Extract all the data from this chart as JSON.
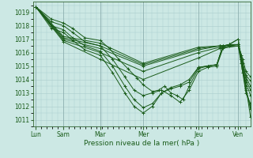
{
  "title": "",
  "xlabel": "Pression niveau de la mer( hPa )",
  "bg_color": "#cce8e4",
  "grid_color": "#aacccc",
  "line_color": "#1a5c1a",
  "tick_label_color": "#1a5c1a",
  "ylim": [
    1010.5,
    1019.8
  ],
  "yticks": [
    1011,
    1012,
    1013,
    1014,
    1015,
    1016,
    1017,
    1018,
    1019
  ],
  "xtick_labels": [
    "Lun",
    "Sam",
    "Mar",
    "Mer",
    "Jeu",
    "Ven"
  ],
  "xtick_positions": [
    0,
    0.9,
    2.1,
    3.5,
    5.3,
    6.6
  ],
  "xlim": [
    -0.1,
    7.0
  ],
  "series_paths": [
    [
      [
        0,
        1019.4
      ],
      [
        0.5,
        1018.5
      ],
      [
        0.9,
        1018.2
      ],
      [
        1.2,
        1017.8
      ],
      [
        1.6,
        1017.1
      ],
      [
        2.1,
        1016.9
      ],
      [
        2.4,
        1016.3
      ],
      [
        2.7,
        1015.5
      ],
      [
        3.0,
        1014.8
      ],
      [
        3.3,
        1014.1
      ],
      [
        3.5,
        1013.6
      ],
      [
        3.8,
        1013.1
      ],
      [
        4.0,
        1013.2
      ],
      [
        4.2,
        1013.5
      ],
      [
        4.4,
        1013.0
      ],
      [
        4.6,
        1012.8
      ],
      [
        4.8,
        1012.5
      ],
      [
        5.0,
        1013.5
      ],
      [
        5.3,
        1014.8
      ],
      [
        5.6,
        1015.0
      ],
      [
        5.9,
        1015.1
      ],
      [
        6.1,
        1016.4
      ],
      [
        6.3,
        1016.6
      ],
      [
        6.6,
        1016.6
      ],
      [
        6.7,
        1015.8
      ],
      [
        6.85,
        1013.5
      ],
      [
        7.0,
        1011.2
      ]
    ],
    [
      [
        0,
        1019.4
      ],
      [
        0.5,
        1018.3
      ],
      [
        0.9,
        1018.0
      ],
      [
        1.2,
        1017.5
      ],
      [
        1.6,
        1016.8
      ],
      [
        2.1,
        1016.5
      ],
      [
        2.5,
        1015.5
      ],
      [
        2.9,
        1014.2
      ],
      [
        3.2,
        1013.2
      ],
      [
        3.5,
        1012.8
      ],
      [
        3.8,
        1013.0
      ],
      [
        4.1,
        1013.2
      ],
      [
        4.4,
        1012.8
      ],
      [
        4.7,
        1012.3
      ],
      [
        5.0,
        1013.2
      ],
      [
        5.3,
        1014.6
      ],
      [
        5.6,
        1014.9
      ],
      [
        5.9,
        1015.0
      ],
      [
        6.1,
        1016.3
      ],
      [
        6.3,
        1016.5
      ],
      [
        6.6,
        1016.6
      ],
      [
        6.7,
        1015.5
      ],
      [
        6.85,
        1013.2
      ],
      [
        7.0,
        1011.8
      ]
    ],
    [
      [
        0,
        1019.4
      ],
      [
        0.5,
        1018.0
      ],
      [
        0.9,
        1017.7
      ],
      [
        1.2,
        1017.1
      ],
      [
        1.6,
        1016.5
      ],
      [
        2.1,
        1016.1
      ],
      [
        2.5,
        1015.0
      ],
      [
        2.9,
        1013.5
      ],
      [
        3.2,
        1012.5
      ],
      [
        3.5,
        1011.9
      ],
      [
        3.8,
        1012.2
      ],
      [
        4.1,
        1013.0
      ],
      [
        4.4,
        1013.3
      ],
      [
        4.7,
        1013.5
      ],
      [
        5.0,
        1013.8
      ],
      [
        5.3,
        1014.9
      ],
      [
        5.6,
        1015.0
      ],
      [
        5.9,
        1015.1
      ],
      [
        6.1,
        1016.5
      ],
      [
        6.3,
        1016.6
      ],
      [
        6.6,
        1017.0
      ],
      [
        6.7,
        1015.5
      ],
      [
        6.85,
        1013.3
      ],
      [
        7.0,
        1012.0
      ]
    ],
    [
      [
        0,
        1019.4
      ],
      [
        0.5,
        1017.8
      ],
      [
        0.9,
        1017.5
      ],
      [
        1.2,
        1016.9
      ],
      [
        1.6,
        1016.2
      ],
      [
        2.1,
        1015.8
      ],
      [
        2.5,
        1014.5
      ],
      [
        2.9,
        1013.0
      ],
      [
        3.2,
        1012.0
      ],
      [
        3.5,
        1011.5
      ],
      [
        3.8,
        1012.0
      ],
      [
        4.1,
        1013.0
      ],
      [
        4.4,
        1013.4
      ],
      [
        4.7,
        1013.6
      ],
      [
        5.0,
        1014.0
      ],
      [
        5.3,
        1014.9
      ],
      [
        5.6,
        1015.0
      ],
      [
        5.9,
        1015.1
      ],
      [
        6.1,
        1016.5
      ],
      [
        6.3,
        1016.6
      ],
      [
        6.6,
        1017.0
      ],
      [
        6.7,
        1015.2
      ],
      [
        6.85,
        1013.0
      ],
      [
        7.0,
        1012.2
      ]
    ],
    [
      [
        0,
        1019.4
      ],
      [
        0.9,
        1017.2
      ],
      [
        2.1,
        1016.7
      ],
      [
        3.5,
        1015.2
      ],
      [
        5.3,
        1016.4
      ],
      [
        6.0,
        1016.5
      ],
      [
        6.6,
        1016.6
      ],
      [
        6.75,
        1015.5
      ],
      [
        6.85,
        1014.6
      ],
      [
        7.0,
        1014.2
      ]
    ],
    [
      [
        0,
        1019.4
      ],
      [
        0.9,
        1017.1
      ],
      [
        2.1,
        1016.5
      ],
      [
        3.5,
        1015.1
      ],
      [
        5.3,
        1016.3
      ],
      [
        6.0,
        1016.5
      ],
      [
        6.6,
        1016.6
      ],
      [
        6.75,
        1015.2
      ],
      [
        6.85,
        1014.3
      ],
      [
        7.0,
        1013.9
      ]
    ],
    [
      [
        0,
        1019.4
      ],
      [
        0.9,
        1017.0
      ],
      [
        2.1,
        1016.3
      ],
      [
        3.5,
        1015.0
      ],
      [
        5.3,
        1016.2
      ],
      [
        6.0,
        1016.5
      ],
      [
        6.6,
        1016.6
      ],
      [
        6.75,
        1015.0
      ],
      [
        6.85,
        1014.2
      ],
      [
        7.0,
        1013.5
      ]
    ],
    [
      [
        0,
        1019.4
      ],
      [
        0.9,
        1016.9
      ],
      [
        2.1,
        1016.0
      ],
      [
        3.5,
        1014.6
      ],
      [
        5.3,
        1016.0
      ],
      [
        6.0,
        1016.4
      ],
      [
        6.6,
        1016.5
      ],
      [
        6.75,
        1014.8
      ],
      [
        6.85,
        1014.0
      ],
      [
        7.0,
        1013.2
      ]
    ],
    [
      [
        0,
        1019.4
      ],
      [
        0.9,
        1016.8
      ],
      [
        2.1,
        1015.5
      ],
      [
        3.5,
        1014.0
      ],
      [
        5.3,
        1015.6
      ],
      [
        6.0,
        1016.3
      ],
      [
        6.6,
        1016.5
      ],
      [
        6.75,
        1014.5
      ],
      [
        6.85,
        1013.8
      ],
      [
        7.0,
        1012.8
      ]
    ]
  ]
}
